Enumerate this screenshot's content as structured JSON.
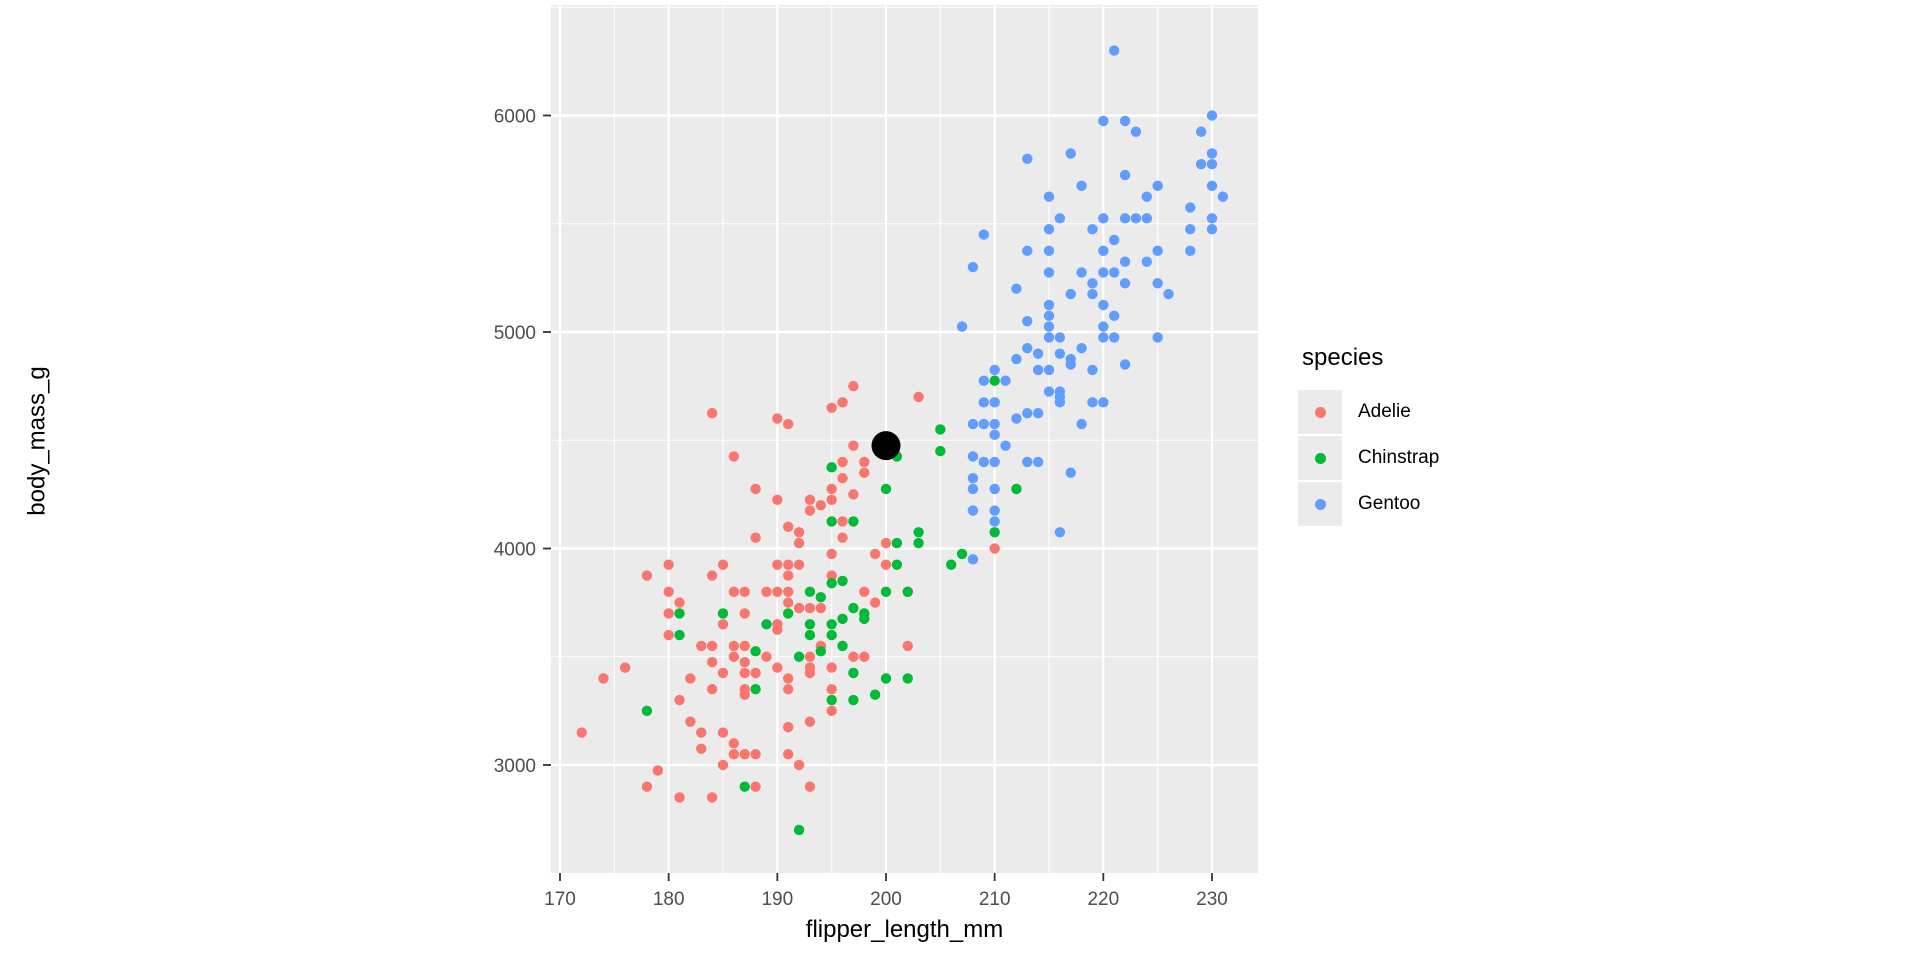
{
  "chart_data": {
    "type": "scatter",
    "title": "",
    "xlabel": "flipper_length_mm",
    "ylabel": "body_mass_g",
    "x_ticks": [
      170,
      180,
      190,
      200,
      210,
      220,
      230
    ],
    "x_tick_labels": [
      "170",
      "180",
      "190",
      "200",
      "210",
      "220",
      "230"
    ],
    "y_ticks": [
      3000,
      4000,
      5000,
      6000
    ],
    "y_tick_labels": [
      "3000",
      "4000",
      "5000",
      "6000"
    ],
    "x_minor_ticks": [
      175,
      185,
      195,
      205,
      215,
      225
    ],
    "y_minor_ticks": [
      3500,
      4500,
      5500,
      6500
    ],
    "xlim": [
      169.2,
      234.2
    ],
    "ylim": [
      2497,
      6510
    ],
    "grid": true,
    "legend": {
      "title": "species",
      "position": "right"
    },
    "panel_bg": "#EBEBEB",
    "grid_color": "#FFFFFF",
    "tick_label_color": "#4D4D4D",
    "tick_mark_color": "#333333",
    "point_radius": 5.2,
    "annotation_point": {
      "x": 200,
      "y": 4475,
      "color": "#000000",
      "radius": 14.5
    },
    "series": [
      {
        "name": "Adelie",
        "color": "#F8766D",
        "points": [
          [
            184,
            4625
          ],
          [
            190,
            4600
          ],
          [
            191,
            4575
          ],
          [
            186,
            4425
          ],
          [
            188,
            4275
          ],
          [
            190,
            4225
          ],
          [
            191,
            4100
          ],
          [
            188,
            4050
          ],
          [
            180,
            3925
          ],
          [
            178,
            3875
          ],
          [
            184,
            3875
          ],
          [
            185,
            3925
          ],
          [
            190,
            3925
          ],
          [
            191,
            3925
          ],
          [
            191,
            3875
          ],
          [
            197,
            4750
          ],
          [
            196,
            4675
          ],
          [
            195,
            4650
          ],
          [
            203,
            4700
          ],
          [
            197,
            4475
          ],
          [
            198,
            4400
          ],
          [
            198,
            4350
          ],
          [
            196,
            4400
          ],
          [
            196,
            4325
          ],
          [
            195,
            4275
          ],
          [
            197,
            4250
          ],
          [
            195,
            4225
          ],
          [
            193,
            4225
          ],
          [
            193,
            4175
          ],
          [
            194,
            4200
          ],
          [
            196,
            4125
          ],
          [
            192,
            4075
          ],
          [
            192,
            4025
          ],
          [
            196,
            4050
          ],
          [
            200,
            4025
          ],
          [
            199,
            3975
          ],
          [
            200,
            3925
          ],
          [
            195,
            3975
          ],
          [
            192,
            3925
          ],
          [
            202,
            3800
          ],
          [
            195,
            3875
          ],
          [
            210,
            4000
          ],
          [
            180,
            3800
          ],
          [
            186,
            3800
          ],
          [
            187,
            3800
          ],
          [
            189,
            3800
          ],
          [
            190,
            3800
          ],
          [
            191,
            3800
          ],
          [
            181,
            3750
          ],
          [
            180,
            3700
          ],
          [
            187,
            3700
          ],
          [
            185,
            3650
          ],
          [
            190,
            3650
          ],
          [
            190,
            3625
          ],
          [
            180,
            3600
          ],
          [
            183,
            3550
          ],
          [
            184,
            3550
          ],
          [
            186,
            3550
          ],
          [
            186,
            3500
          ],
          [
            187,
            3550
          ],
          [
            189,
            3500
          ],
          [
            190,
            3450
          ],
          [
            184,
            3475
          ],
          [
            185,
            3425
          ],
          [
            187,
            3475
          ],
          [
            187,
            3425
          ],
          [
            188,
            3425
          ],
          [
            174,
            3400
          ],
          [
            176,
            3450
          ],
          [
            182,
            3400
          ],
          [
            184,
            3350
          ],
          [
            187,
            3350
          ],
          [
            187,
            3325
          ],
          [
            181,
            3300
          ],
          [
            182,
            3200
          ],
          [
            183,
            3150
          ],
          [
            185,
            3150
          ],
          [
            172,
            3150
          ],
          [
            183,
            3075
          ],
          [
            186,
            3100
          ],
          [
            186,
            3050
          ],
          [
            187,
            3050
          ],
          [
            188,
            3050
          ],
          [
            185,
            3000
          ],
          [
            179,
            2975
          ],
          [
            178,
            2900
          ],
          [
            188,
            2900
          ],
          [
            181,
            2850
          ],
          [
            184,
            2850
          ],
          [
            198,
            3800
          ],
          [
            199,
            3750
          ],
          [
            191,
            3750
          ],
          [
            192,
            3725
          ],
          [
            193,
            3725
          ],
          [
            194,
            3725
          ],
          [
            194,
            3550
          ],
          [
            193,
            3500
          ],
          [
            193,
            3450
          ],
          [
            193,
            3425
          ],
          [
            195,
            3450
          ],
          [
            197,
            3500
          ],
          [
            198,
            3500
          ],
          [
            191,
            3400
          ],
          [
            191,
            3350
          ],
          [
            195,
            3350
          ],
          [
            195,
            3250
          ],
          [
            202,
            3550
          ],
          [
            193,
            3200
          ],
          [
            191,
            3175
          ],
          [
            191,
            3050
          ],
          [
            192,
            3000
          ],
          [
            193,
            2900
          ]
        ]
      },
      {
        "name": "Chinstrap",
        "color": "#00BA38",
        "points": [
          [
            210,
            4775
          ],
          [
            205,
            4550
          ],
          [
            205,
            4450
          ],
          [
            201,
            4425
          ],
          [
            200,
            4275
          ],
          [
            195,
            4375
          ],
          [
            197,
            4125
          ],
          [
            195,
            4125
          ],
          [
            203,
            4075
          ],
          [
            203,
            4025
          ],
          [
            201,
            4025
          ],
          [
            207,
            3975
          ],
          [
            201,
            3925
          ],
          [
            206,
            3925
          ],
          [
            212,
            4275
          ],
          [
            210,
            4075
          ],
          [
            195,
            3840
          ],
          [
            196,
            3850
          ],
          [
            181,
            3700
          ],
          [
            185,
            3700
          ],
          [
            189,
            3650
          ],
          [
            181,
            3600
          ],
          [
            188,
            3525
          ],
          [
            188,
            3350
          ],
          [
            178,
            3250
          ],
          [
            187,
            2900
          ],
          [
            200,
            3800
          ],
          [
            202,
            3800
          ],
          [
            193,
            3800
          ],
          [
            194,
            3775
          ],
          [
            191,
            3700
          ],
          [
            197,
            3725
          ],
          [
            198,
            3700
          ],
          [
            198,
            3675
          ],
          [
            196,
            3675
          ],
          [
            195,
            3650
          ],
          [
            195,
            3600
          ],
          [
            193,
            3650
          ],
          [
            193,
            3600
          ],
          [
            196,
            3550
          ],
          [
            194,
            3525
          ],
          [
            192,
            3500
          ],
          [
            197,
            3425
          ],
          [
            195,
            3300
          ],
          [
            197,
            3300
          ],
          [
            199,
            3325
          ],
          [
            200,
            3400
          ],
          [
            202,
            3400
          ],
          [
            192,
            2700
          ]
        ]
      },
      {
        "name": "Gentoo",
        "color": "#619CFF",
        "points": [
          [
            213,
            5800
          ],
          [
            209,
            5450
          ],
          [
            208,
            5300
          ],
          [
            213,
            5375
          ],
          [
            212,
            5200
          ],
          [
            221,
            6300
          ],
          [
            230,
            6000
          ],
          [
            220,
            5975
          ],
          [
            222,
            5975
          ],
          [
            223,
            5925
          ],
          [
            229,
            5925
          ],
          [
            217,
            5825
          ],
          [
            230,
            5825
          ],
          [
            229,
            5775
          ],
          [
            230,
            5775
          ],
          [
            222,
            5725
          ],
          [
            225,
            5675
          ],
          [
            218,
            5675
          ],
          [
            230,
            5675
          ],
          [
            231,
            5625
          ],
          [
            215,
            5625
          ],
          [
            224,
            5625
          ],
          [
            228,
            5575
          ],
          [
            216,
            5525
          ],
          [
            220,
            5525
          ],
          [
            222,
            5525
          ],
          [
            223,
            5525
          ],
          [
            224,
            5525
          ],
          [
            230,
            5525
          ],
          [
            215,
            5475
          ],
          [
            219,
            5475
          ],
          [
            228,
            5475
          ],
          [
            230,
            5475
          ],
          [
            221,
            5425
          ],
          [
            215,
            5375
          ],
          [
            220,
            5375
          ],
          [
            228,
            5375
          ],
          [
            225,
            5375
          ],
          [
            222,
            5325
          ],
          [
            224,
            5325
          ],
          [
            215,
            5275
          ],
          [
            218,
            5275
          ],
          [
            220,
            5275
          ],
          [
            221,
            5275
          ],
          [
            219,
            5225
          ],
          [
            222,
            5225
          ],
          [
            225,
            5225
          ],
          [
            217,
            5175
          ],
          [
            219,
            5175
          ],
          [
            226,
            5175
          ],
          [
            215,
            5125
          ],
          [
            220,
            5125
          ],
          [
            213,
            5050
          ],
          [
            215,
            5075
          ],
          [
            221,
            5075
          ],
          [
            215,
            5025
          ],
          [
            220,
            5025
          ],
          [
            215,
            4975
          ],
          [
            216,
            4975
          ],
          [
            220,
            4975
          ],
          [
            221,
            4975
          ],
          [
            225,
            4975
          ],
          [
            213,
            4925
          ],
          [
            214,
            4900
          ],
          [
            216,
            4900
          ],
          [
            218,
            4925
          ],
          [
            217,
            4875
          ],
          [
            217,
            4850
          ],
          [
            222,
            4850
          ],
          [
            214,
            4825
          ],
          [
            215,
            4825
          ],
          [
            219,
            4825
          ],
          [
            215,
            4725
          ],
          [
            216,
            4725
          ],
          [
            216,
            4700
          ],
          [
            216,
            4675
          ],
          [
            219,
            4675
          ],
          [
            220,
            4675
          ],
          [
            213,
            4625
          ],
          [
            214,
            4625
          ],
          [
            218,
            4575
          ],
          [
            213,
            4400
          ],
          [
            214,
            4400
          ],
          [
            217,
            4350
          ],
          [
            216,
            4075
          ],
          [
            207,
            5025
          ],
          [
            210,
            4825
          ],
          [
            211,
            4775
          ],
          [
            212,
            4875
          ],
          [
            209,
            4775
          ],
          [
            209,
            4675
          ],
          [
            210,
            4675
          ],
          [
            208,
            4575
          ],
          [
            209,
            4575
          ],
          [
            210,
            4575
          ],
          [
            212,
            4600
          ],
          [
            210,
            4525
          ],
          [
            211,
            4475
          ],
          [
            208,
            4425
          ],
          [
            209,
            4400
          ],
          [
            210,
            4400
          ],
          [
            208,
            4325
          ],
          [
            208,
            4275
          ],
          [
            210,
            4275
          ],
          [
            208,
            4175
          ],
          [
            210,
            4175
          ],
          [
            210,
            4125
          ],
          [
            208,
            3950
          ]
        ]
      }
    ]
  }
}
